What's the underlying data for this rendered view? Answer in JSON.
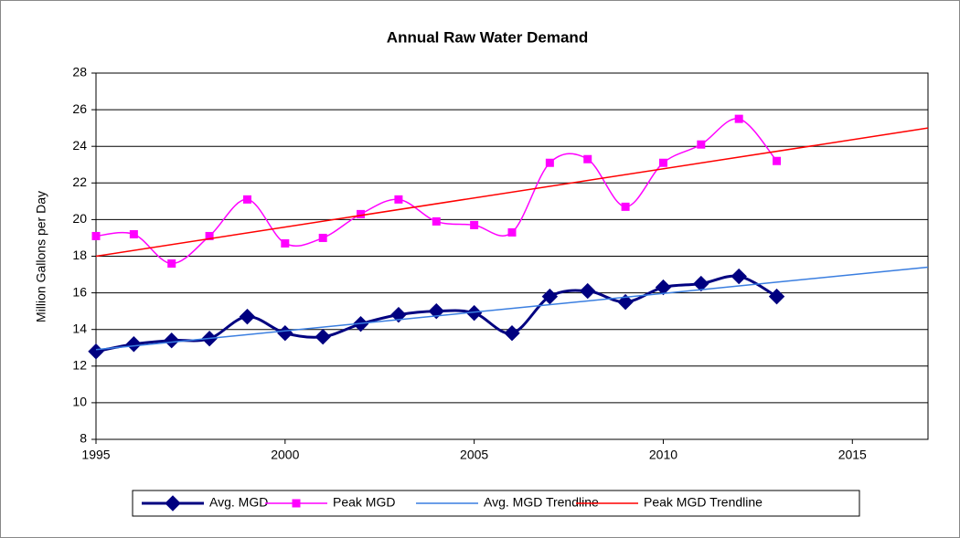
{
  "chart_data": {
    "type": "line",
    "title": "Annual Raw Water Demand",
    "y_label": "Million Gallons per Day",
    "xlim": [
      1995,
      2017
    ],
    "xticks": [
      1995,
      2000,
      2005,
      2010,
      2015
    ],
    "ylim": [
      8,
      28
    ],
    "yticks": [
      8,
      10,
      12,
      14,
      16,
      18,
      20,
      22,
      24,
      26,
      28
    ],
    "grid": true,
    "legend": "bottom",
    "series": [
      {
        "name": "Avg. MGD",
        "color": "#000080",
        "marker": "diamond",
        "smooth": true,
        "x": [
          1995,
          1996,
          1997,
          1998,
          1999,
          2000,
          2001,
          2002,
          2003,
          2004,
          2005,
          2006,
          2007,
          2008,
          2009,
          2010,
          2011,
          2012,
          2013
        ],
        "values": [
          12.8,
          13.2,
          13.4,
          13.5,
          14.7,
          13.8,
          13.6,
          14.3,
          14.8,
          15.0,
          14.9,
          13.8,
          15.8,
          16.1,
          15.5,
          16.3,
          16.5,
          16.9,
          15.8
        ]
      },
      {
        "name": "Peak MGD",
        "color": "#ff00ff",
        "marker": "square",
        "smooth": true,
        "x": [
          1995,
          1996,
          1997,
          1998,
          1999,
          2000,
          2001,
          2002,
          2003,
          2004,
          2005,
          2006,
          2007,
          2008,
          2009,
          2010,
          2011,
          2012,
          2013
        ],
        "values": [
          19.1,
          19.2,
          17.6,
          19.1,
          21.1,
          18.7,
          19.0,
          20.3,
          21.1,
          19.9,
          19.7,
          19.3,
          23.1,
          23.3,
          20.7,
          23.1,
          24.1,
          25.5,
          23.2
        ]
      },
      {
        "name": "Avg. MGD Trendline",
        "color": "#3a7ee0",
        "marker": "none",
        "smooth": false,
        "x": [
          1995,
          2017
        ],
        "values": [
          12.9,
          17.4
        ]
      },
      {
        "name": "Peak MGD Trendline",
        "color": "#ff0000",
        "marker": "none",
        "smooth": false,
        "x": [
          1995,
          2017
        ],
        "values": [
          18.0,
          25.0
        ]
      }
    ]
  }
}
